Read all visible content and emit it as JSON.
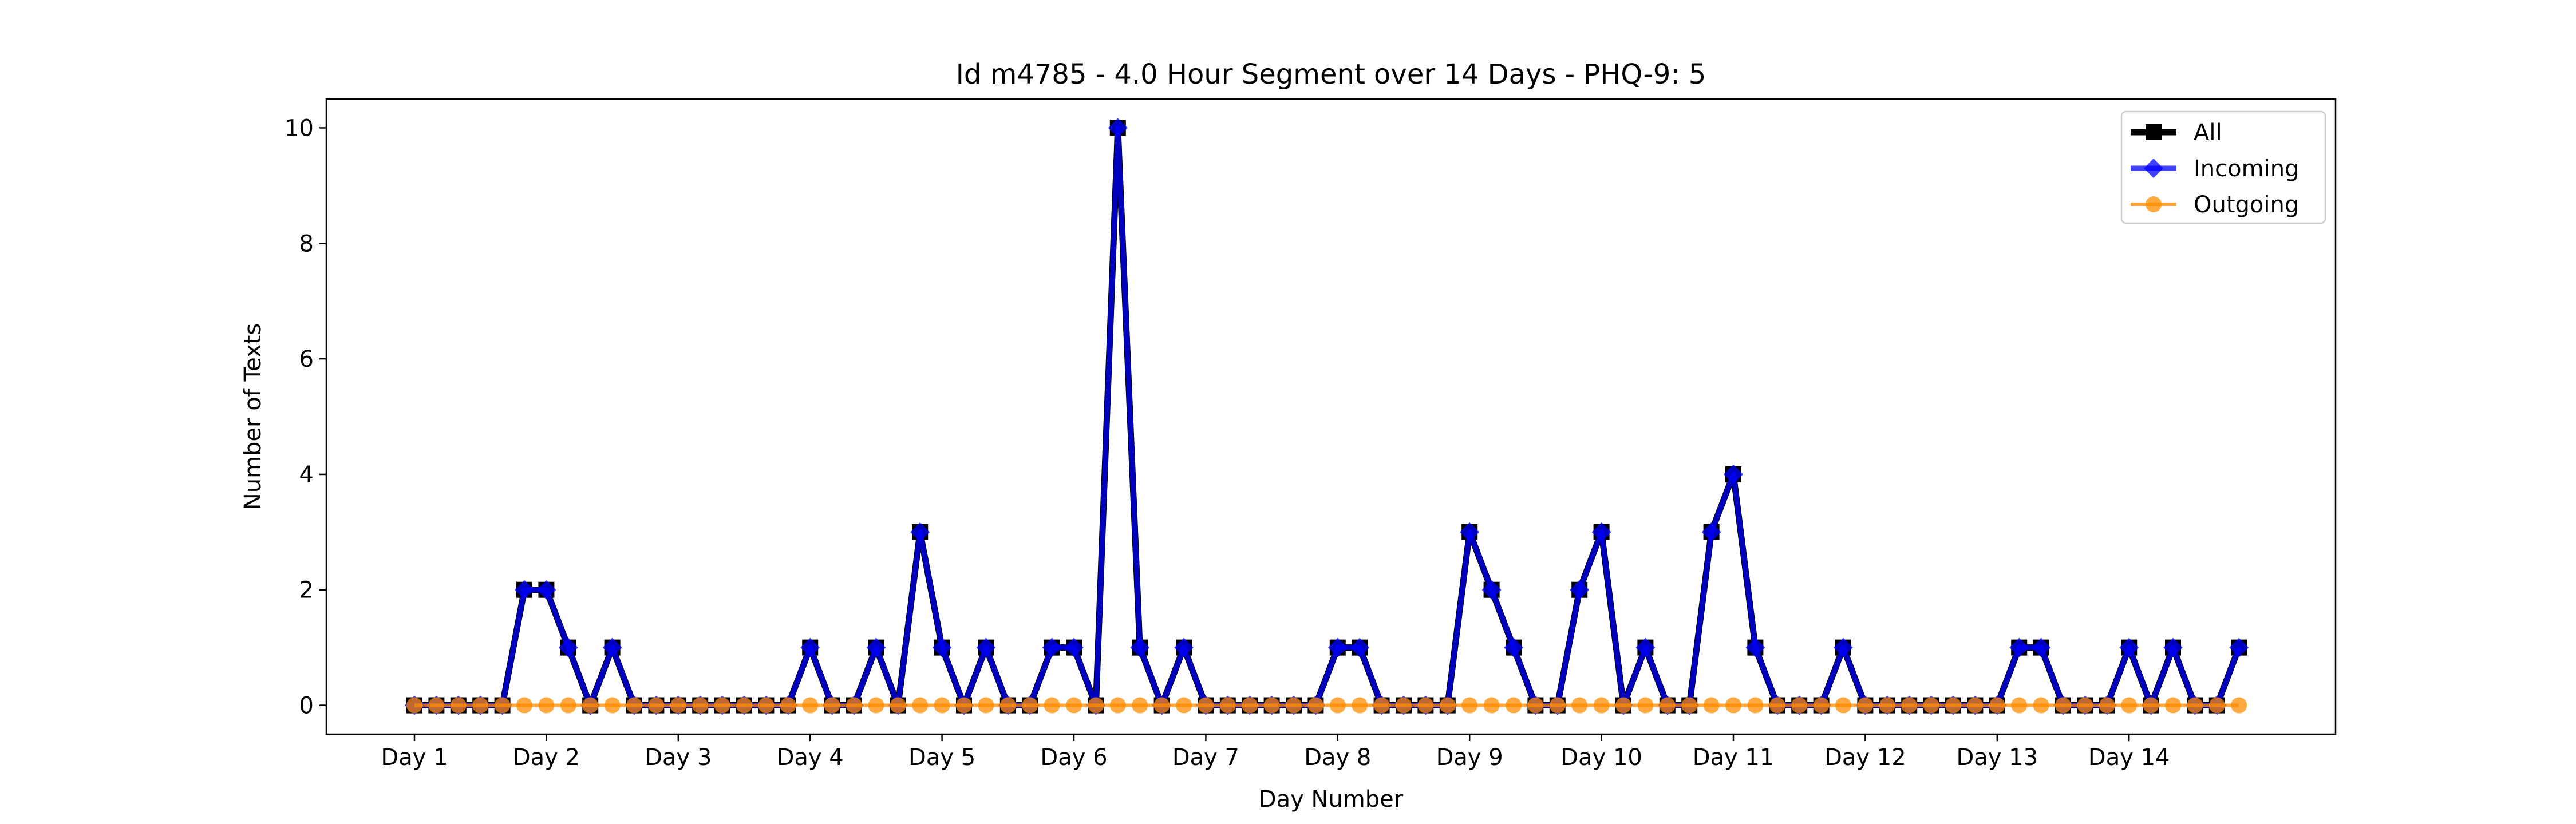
{
  "chart_data": {
    "type": "line",
    "title": "Id m4785 - 4.0 Hour Segment over 14 Days - PHQ-9: 5",
    "xlabel": "Day Number",
    "ylabel": "Number of Texts",
    "ylim": [
      -0.5,
      10.5
    ],
    "yticks": [
      0,
      2,
      4,
      6,
      8,
      10
    ],
    "xticks": [
      {
        "pos": 0,
        "label": "Day 1"
      },
      {
        "pos": 6,
        "label": "Day 2"
      },
      {
        "pos": 12,
        "label": "Day 3"
      },
      {
        "pos": 18,
        "label": "Day 4"
      },
      {
        "pos": 24,
        "label": "Day 5"
      },
      {
        "pos": 30,
        "label": "Day 6"
      },
      {
        "pos": 36,
        "label": "Day 7"
      },
      {
        "pos": 42,
        "label": "Day 8"
      },
      {
        "pos": 48,
        "label": "Day 9"
      },
      {
        "pos": 54,
        "label": "Day 10"
      },
      {
        "pos": 60,
        "label": "Day 11"
      },
      {
        "pos": 66,
        "label": "Day 12"
      },
      {
        "pos": 72,
        "label": "Day 13"
      },
      {
        "pos": 78,
        "label": "Day 14"
      }
    ],
    "legend_position": "top-right",
    "grid": false,
    "series": [
      {
        "name": "All",
        "color": "#000000",
        "marker": "square",
        "values": [
          0,
          0,
          0,
          0,
          0,
          2,
          2,
          1,
          0,
          1,
          0,
          0,
          0,
          0,
          0,
          0,
          0,
          0,
          1,
          0,
          0,
          1,
          0,
          3,
          1,
          0,
          1,
          0,
          0,
          1,
          1,
          0,
          10,
          1,
          0,
          1,
          0,
          0,
          0,
          0,
          0,
          0,
          1,
          1,
          0,
          0,
          0,
          0,
          3,
          2,
          1,
          0,
          0,
          2,
          3,
          0,
          1,
          0,
          0,
          3,
          4,
          1,
          0,
          0,
          0,
          1,
          0,
          0,
          0,
          0,
          0,
          0,
          0,
          1,
          1,
          0,
          0,
          0,
          1,
          0,
          1,
          0,
          0,
          1
        ]
      },
      {
        "name": "Incoming",
        "color": "#0000ff",
        "marker": "diamond",
        "values": [
          0,
          0,
          0,
          0,
          0,
          2,
          2,
          1,
          0,
          1,
          0,
          0,
          0,
          0,
          0,
          0,
          0,
          0,
          1,
          0,
          0,
          1,
          0,
          3,
          1,
          0,
          1,
          0,
          0,
          1,
          1,
          0,
          10,
          1,
          0,
          1,
          0,
          0,
          0,
          0,
          0,
          0,
          1,
          1,
          0,
          0,
          0,
          0,
          3,
          2,
          1,
          0,
          0,
          2,
          3,
          0,
          1,
          0,
          0,
          3,
          4,
          1,
          0,
          0,
          0,
          1,
          0,
          0,
          0,
          0,
          0,
          0,
          0,
          1,
          1,
          0,
          0,
          0,
          1,
          0,
          1,
          0,
          0,
          1
        ]
      },
      {
        "name": "Outgoing",
        "color": "#ff8c00",
        "marker": "circle",
        "values": [
          0,
          0,
          0,
          0,
          0,
          0,
          0,
          0,
          0,
          0,
          0,
          0,
          0,
          0,
          0,
          0,
          0,
          0,
          0,
          0,
          0,
          0,
          0,
          0,
          0,
          0,
          0,
          0,
          0,
          0,
          0,
          0,
          0,
          0,
          0,
          0,
          0,
          0,
          0,
          0,
          0,
          0,
          0,
          0,
          0,
          0,
          0,
          0,
          0,
          0,
          0,
          0,
          0,
          0,
          0,
          0,
          0,
          0,
          0,
          0,
          0,
          0,
          0,
          0,
          0,
          0,
          0,
          0,
          0,
          0,
          0,
          0,
          0,
          0,
          0,
          0,
          0,
          0,
          0,
          0,
          0,
          0,
          0,
          0
        ]
      }
    ]
  }
}
